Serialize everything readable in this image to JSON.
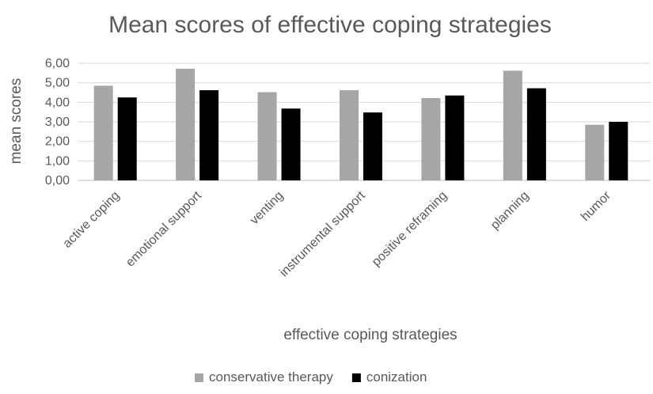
{
  "chart_data": {
    "type": "bar",
    "title": "Mean scores of effective coping strategies",
    "xlabel": "effective coping strategies",
    "ylabel": "mean scores",
    "ylim": [
      0,
      6
    ],
    "yticks": [
      "0,00",
      "1,00",
      "2,00",
      "3,00",
      "4,00",
      "5,00",
      "6,00"
    ],
    "categories": [
      "active coping",
      "emotional support",
      "venting",
      "instrumental support",
      "positive reframing",
      "planning",
      "humor"
    ],
    "series": [
      {
        "name": "conservative therapy",
        "color": "#a6a6a6",
        "values": [
          4.85,
          5.72,
          4.52,
          4.62,
          4.22,
          5.62,
          2.85
        ]
      },
      {
        "name": "conization",
        "color": "#000000",
        "values": [
          4.25,
          4.62,
          3.68,
          3.48,
          4.35,
          4.72,
          3.0
        ]
      }
    ],
    "grid": true,
    "legend_position": "bottom"
  }
}
